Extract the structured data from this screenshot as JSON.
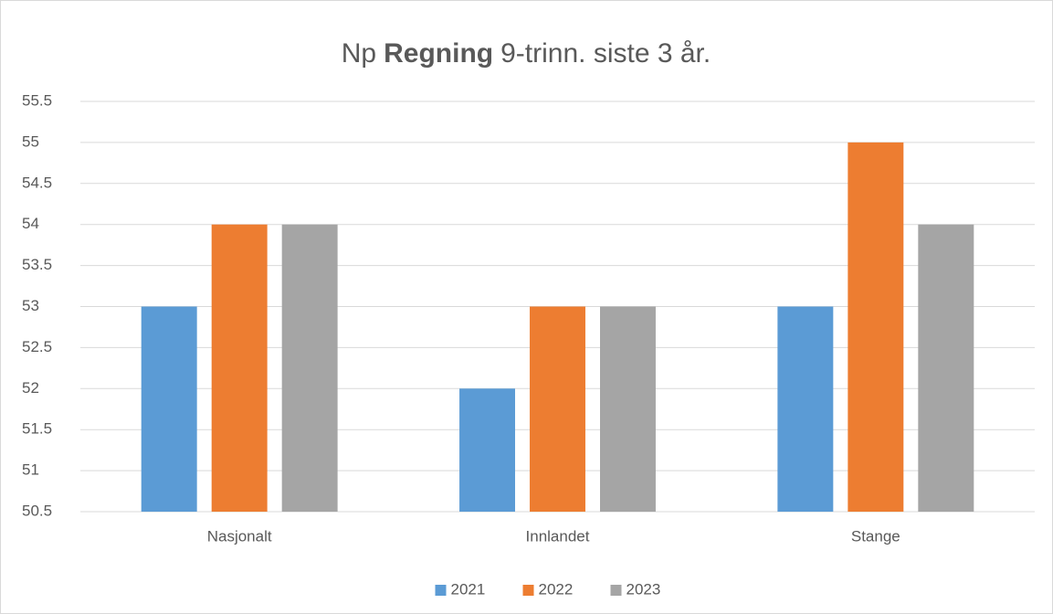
{
  "chart_data": {
    "type": "bar",
    "title": [
      "Np",
      "Regning",
      "9-trinn. siste 3 år."
    ],
    "categories": [
      "Nasjonalt",
      "Innlandet",
      "Stange"
    ],
    "series": [
      {
        "name": "2021",
        "color": "#5b9bd5",
        "values": [
          53,
          52,
          53
        ]
      },
      {
        "name": "2022",
        "color": "#ed7d31",
        "values": [
          54,
          53,
          55
        ]
      },
      {
        "name": "2023",
        "color": "#a5a5a5",
        "values": [
          54,
          53,
          54
        ]
      }
    ],
    "ylim": [
      50.5,
      55.5
    ],
    "yticks": [
      50.5,
      51,
      51.5,
      52,
      52.5,
      53,
      53.5,
      54,
      54.5,
      55,
      55.5
    ],
    "grid": true,
    "legend": "bottom"
  }
}
